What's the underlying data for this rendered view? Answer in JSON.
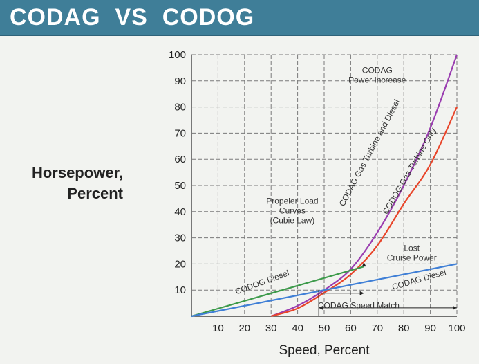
{
  "header": {
    "title": "CODAG  VS  CODOG"
  },
  "colors": {
    "header_bg": "#3f7e98",
    "codag_combined": "#9a3db0",
    "codog_gas_turbine": "#e8452a",
    "codog_diesel": "#3c9a4a",
    "codag_diesel": "#3f7fd6",
    "grid": "#7a7a7a"
  },
  "chart_data": {
    "type": "line",
    "ylabel": [
      "Horsepower,",
      "Percent"
    ],
    "xlabel": "Speed, Percent",
    "xlim": [
      0,
      100
    ],
    "ylim": [
      0,
      100
    ],
    "xticks": [
      10,
      20,
      30,
      40,
      50,
      60,
      70,
      80,
      90,
      100
    ],
    "yticks": [
      10,
      20,
      30,
      40,
      50,
      60,
      70,
      80,
      90,
      100
    ],
    "grid": true,
    "series": [
      {
        "name": "CODAG Gas Turbine and Diesel",
        "color": "#9a3db0",
        "x": [
          30,
          40,
          50,
          60,
          70,
          80,
          90,
          100
        ],
        "y": [
          0,
          4,
          10,
          18,
          32,
          50,
          72,
          100
        ]
      },
      {
        "name": "CODOG Gas Turbine Only",
        "color": "#e8452a",
        "x": [
          30,
          40,
          50,
          60,
          70,
          80,
          90,
          100
        ],
        "y": [
          0,
          3,
          9,
          16,
          27,
          43,
          58,
          80
        ]
      },
      {
        "name": "CODOG Diesel",
        "color": "#3c9a4a",
        "x": [
          0,
          65
        ],
        "y": [
          0,
          19
        ]
      },
      {
        "name": "CODAG Diesel",
        "color": "#3f7fd6",
        "x": [
          0,
          100
        ],
        "y": [
          0,
          20
        ]
      }
    ],
    "annotations": [
      {
        "lines": [
          "CODAG",
          "Power Increase"
        ],
        "x": 70,
        "y": 93
      },
      {
        "lines": [
          "Propeler Load",
          "Curves",
          "(Cubie Law)"
        ],
        "x": 38,
        "y": 43
      },
      {
        "lines": [
          "Lost",
          "Cruise Power"
        ],
        "x": 83,
        "y": 25
      },
      {
        "lines": [
          "CODAG Speed Match"
        ],
        "x": 63,
        "y": 3
      }
    ]
  }
}
